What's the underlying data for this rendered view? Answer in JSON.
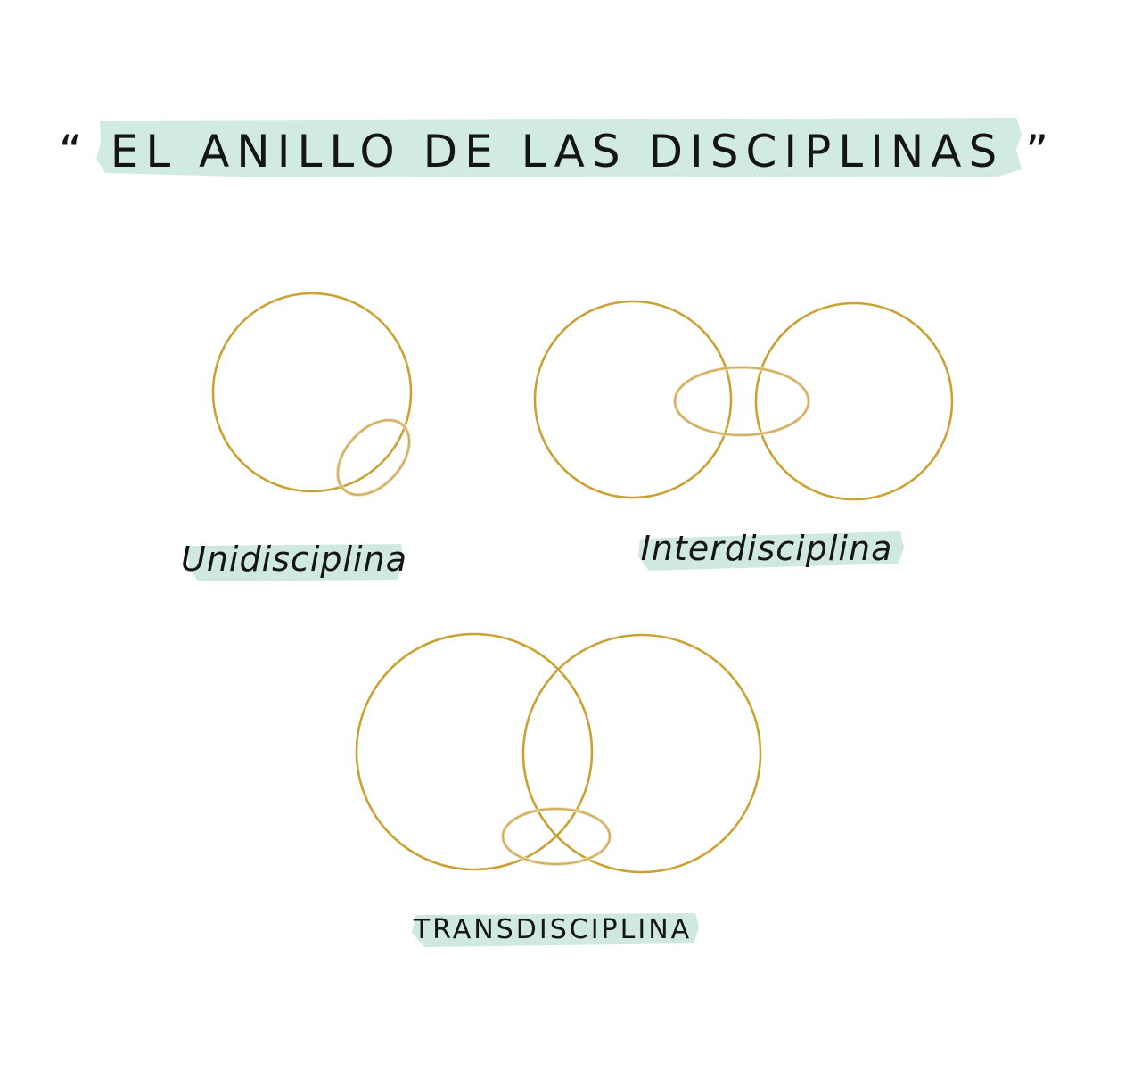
{
  "title": "“ EL ANILLO DE LAS DISCIPLINAS ”",
  "panels": {
    "unidisciplina": {
      "label": "Unidisciplina"
    },
    "interdisciplina": {
      "label": "Interdisciplina"
    },
    "transdisciplina": {
      "label": "TRANSDISCIPLINA"
    }
  },
  "colors": {
    "ring_gold": "#c9a233",
    "ring_gold_light": "#d9bc6e",
    "highlight_mint": "#cfe9e0",
    "ink": "#151515",
    "background": "#ffffff"
  }
}
